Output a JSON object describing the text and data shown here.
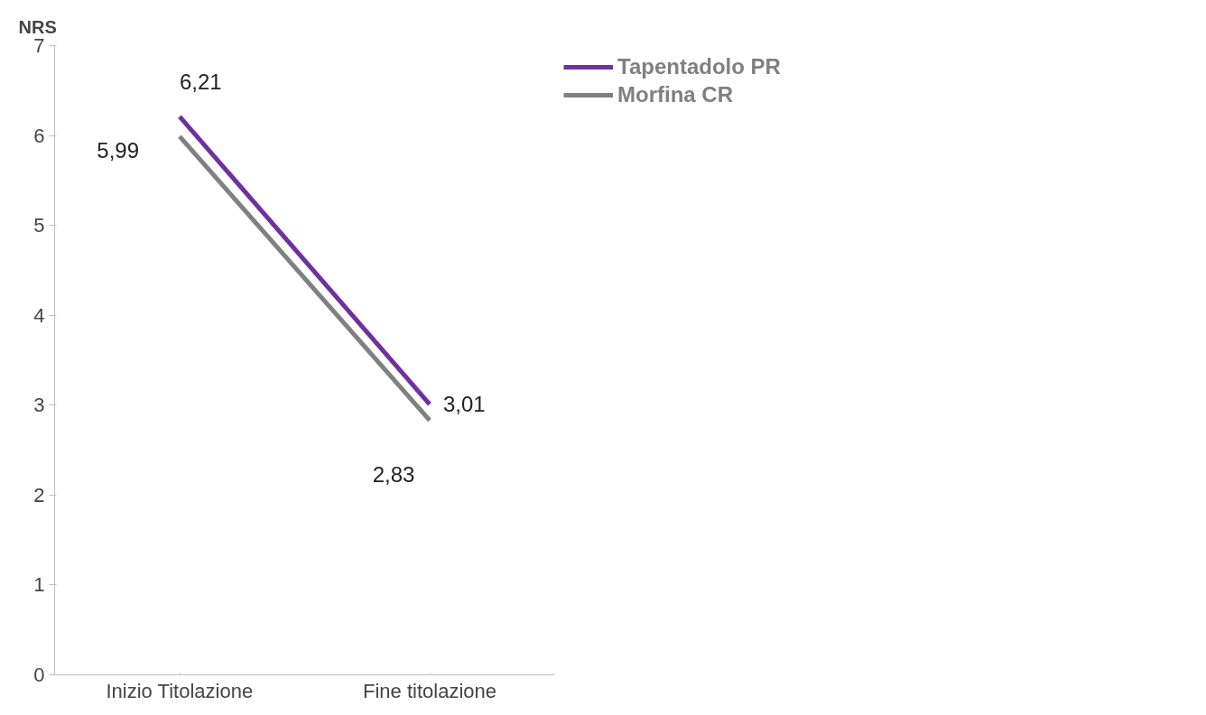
{
  "chart_data": {
    "type": "line",
    "ylabel": "NRS",
    "categories": [
      "Inizio Titolazione",
      "Fine titolazione"
    ],
    "series": [
      {
        "name": "Tapentadolo PR",
        "color": "#7030a0",
        "values": [
          6.21,
          3.01
        ],
        "value_labels": [
          "6,21",
          "3,01"
        ]
      },
      {
        "name": "Morfina CR",
        "color": "#808080",
        "values": [
          5.99,
          2.83
        ],
        "value_labels": [
          "5,99",
          "2,83"
        ]
      }
    ],
    "ylim": [
      0,
      7
    ],
    "yticks": [
      0,
      1,
      2,
      3,
      4,
      5,
      6,
      7
    ],
    "grid": false,
    "legend": "top right",
    "marker": "none",
    "line_style": "solid"
  }
}
